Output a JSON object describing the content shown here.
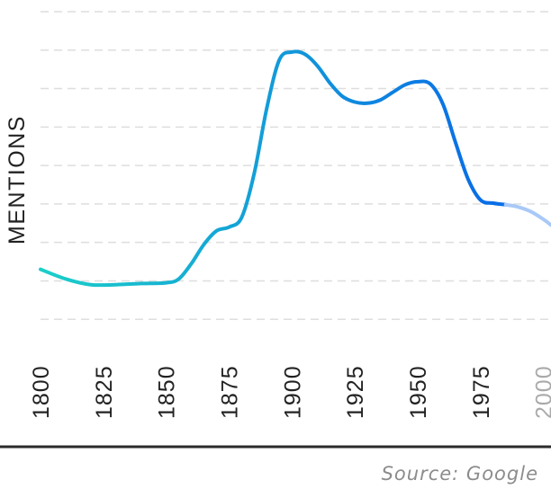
{
  "chart_data": {
    "type": "line",
    "title": "",
    "xlabel": "",
    "ylabel": "MENTIONS",
    "x_tick_labels": [
      "1800",
      "1825",
      "1850",
      "1875",
      "1900",
      "1925",
      "1950",
      "1975",
      "2000"
    ],
    "x_tick_values": [
      1800,
      1825,
      1850,
      1875,
      1900,
      1925,
      1950,
      1975,
      2000
    ],
    "xlim": [
      1800,
      2003
    ],
    "ylim": [
      0,
      9
    ],
    "grid": "horizontal-dashed",
    "series": [
      {
        "x": [
          1800,
          1810,
          1820,
          1830,
          1840,
          1850,
          1855,
          1860,
          1865,
          1870,
          1875,
          1880,
          1885,
          1890,
          1895,
          1900,
          1905,
          1910,
          1915,
          1920,
          1925,
          1930,
          1935,
          1940,
          1945,
          1950,
          1955,
          1960,
          1965,
          1970,
          1975,
          1980,
          1985,
          1990,
          1995,
          2000,
          2003
        ],
        "y": [
          2.3,
          2.05,
          1.9,
          1.9,
          1.93,
          1.95,
          2.05,
          2.45,
          2.95,
          3.3,
          3.4,
          3.65,
          4.8,
          6.5,
          7.75,
          7.95,
          7.9,
          7.6,
          7.15,
          6.8,
          6.65,
          6.62,
          6.7,
          6.9,
          7.1,
          7.18,
          7.12,
          6.6,
          5.6,
          4.65,
          4.1,
          4.02,
          3.98,
          3.92,
          3.8,
          3.6,
          3.45
        ]
      }
    ],
    "projection_from_x": 1983,
    "colors": {
      "line_start": "#1ccfc9",
      "line_end": "#0a6fe6",
      "projection": "#a9c9f7",
      "grid": "#dedede",
      "tick_label": "#222222",
      "tick_label_faded": "#aaaaaa",
      "baseline": "#2b2b2b"
    }
  },
  "source_text": "Source: Google"
}
